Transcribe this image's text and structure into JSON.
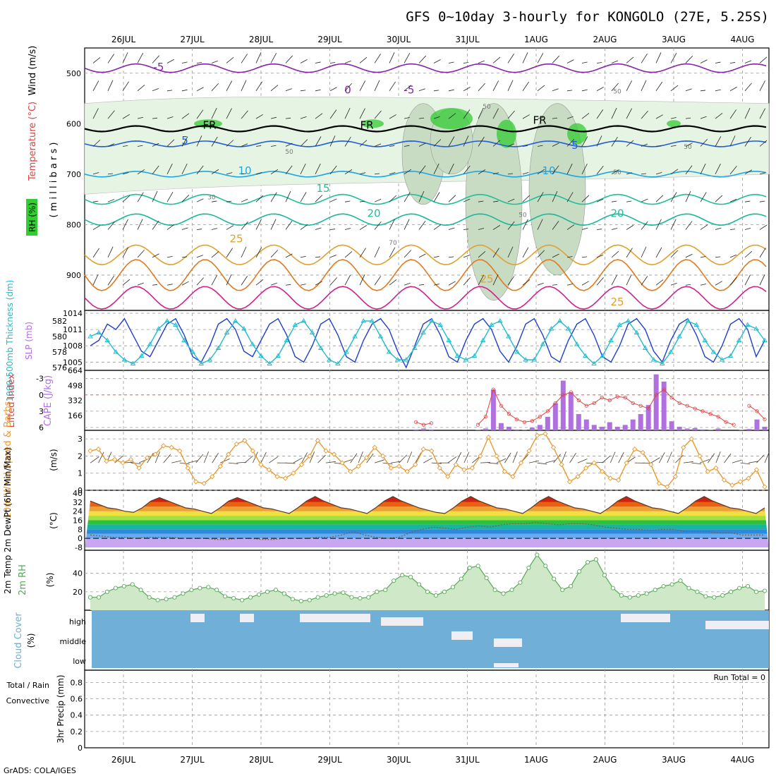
{
  "title": "GFS 0~10day 3-hourly for KONGOLO (27E, 5.25S)",
  "footer": "GrADS: COLA/IGES",
  "dates": [
    "26JUL",
    "27JUL",
    "28JUL",
    "29JUL",
    "30JUL",
    "31JUL",
    "1AUG",
    "2AUG",
    "3AUG",
    "4AUG"
  ],
  "colors": {
    "rh_green": "#33cc33",
    "temp_blue": "#1f5fd6",
    "temp_cyan": "#1fa5e0",
    "temp_teal": "#1fbf9a",
    "temp_orange": "#e0a030",
    "temp_red": "#d03030",
    "temp_magenta": "#d0208a",
    "freezing": "#000000",
    "slp": "#1f3fcc",
    "thickness": "#22bbcc",
    "lifted": "#e04040",
    "cape": "#b070e0",
    "wind10m": "#e89a30",
    "rh2m": "#55aa55",
    "cloud": "#6fafd8",
    "cloud_clear": "#f0eef5",
    "dewpt": "#8a5a3a"
  },
  "panels": {
    "upper": {
      "labels": {
        "rh": "RH (%)",
        "temp": "Temperature (°C)",
        "wind": "Wind (m/s)",
        "mb": "( m i l l i b a r s )"
      },
      "ticks": [
        "500",
        "600",
        "700",
        "800",
        "900"
      ],
      "contour_labels": [
        {
          "text": "-5",
          "color": "#8822aa"
        },
        {
          "text": "0",
          "color": "#8822aa"
        },
        {
          "text": "-5",
          "color": "#8822aa"
        },
        {
          "text": "5",
          "color": "#1f5fd6"
        },
        {
          "text": "5",
          "color": "#1f5fd6"
        },
        {
          "text": "10",
          "color": "#1fa5e0"
        },
        {
          "text": "10",
          "color": "#1fa5e0"
        },
        {
          "text": "15",
          "color": "#1fbf9a"
        },
        {
          "text": "20",
          "color": "#1fbf9a"
        },
        {
          "text": "20",
          "color": "#1fbf9a"
        },
        {
          "text": "25",
          "color": "#e0a030"
        },
        {
          "text": "25",
          "color": "#e0a030"
        },
        {
          "text": "25",
          "color": "#e0a030"
        },
        {
          "text": "FR",
          "color": "#000000"
        },
        {
          "text": "FR",
          "color": "#000000"
        },
        {
          "text": "FR",
          "color": "#000000"
        },
        {
          "text": "30",
          "color": "#777777"
        },
        {
          "text": "50",
          "color": "#777777"
        },
        {
          "text": "50",
          "color": "#777777"
        },
        {
          "text": "70",
          "color": "#777777"
        },
        {
          "text": "50",
          "color": "#777777"
        },
        {
          "text": "50",
          "color": "#777777"
        },
        {
          "text": "50",
          "color": "#777777"
        },
        {
          "text": "50",
          "color": "#777777"
        }
      ]
    },
    "slp": {
      "label_slp": "SLP (mb)",
      "label_thk": "1000-500mb Thickness (dm)",
      "left_ticks": [
        "582",
        "580",
        "578",
        "576"
      ],
      "right_ticks": [
        "1014",
        "1011",
        "1008",
        "1005"
      ]
    },
    "li": {
      "label_li": "Lifted Index",
      "label_cape": "CAPE (J/kg)",
      "left_ticks": [
        "-3",
        "0",
        "3",
        "6"
      ],
      "right_ticks": [
        "664",
        "498",
        "332",
        "166"
      ]
    },
    "wind10": {
      "label": "10m Wind Speed & Barbs",
      "unit": "(m/s)",
      "ticks": [
        "3",
        "2",
        "1",
        "0"
      ]
    },
    "temp2m": {
      "label": "2m Temp 2m DewPt (6hr Min/Max)",
      "unit": "(°C)",
      "ticks": [
        "40",
        "32",
        "24",
        "16",
        "8",
        "0",
        "-8"
      ]
    },
    "rh2m": {
      "label": "2m RH",
      "unit": "(%)",
      "ticks": [
        "40",
        "20"
      ]
    },
    "cloud": {
      "label": "Cloud Cover",
      "unit": "(%)",
      "levels": [
        "high",
        "middle",
        "low"
      ]
    },
    "precip": {
      "label_total": "Total / Rain",
      "label_conv": "Convective",
      "label_y": "3hr Precip (mm)",
      "ticks": [
        "0.8",
        "0.6",
        "0.4",
        "0.2",
        "0"
      ],
      "run_total": "Run Total = 0"
    }
  },
  "chart_data": [
    {
      "type": "heatmap",
      "name": "rh_temp_wind_section",
      "ylabel": "millibars",
      "ylim": [
        970,
        450
      ],
      "y_ticks": [
        500,
        600,
        700,
        800,
        900
      ],
      "x_dates": [
        "26JUL",
        "27JUL",
        "28JUL",
        "29JUL",
        "30JUL",
        "31JUL",
        "1AUG",
        "2AUG",
        "3AUG",
        "4AUG"
      ]
    },
    {
      "type": "line",
      "name": "slp_thickness",
      "series": [
        {
          "name": "SLP (mb)",
          "values": [
            1008,
            1009,
            1012,
            1011,
            1013,
            1010,
            1007,
            1006,
            1009,
            1012,
            1013,
            1010,
            1006,
            1005,
            1008,
            1012,
            1013,
            1011,
            1007,
            1006,
            1009,
            1012,
            1013,
            1010,
            1006,
            1005,
            1008,
            1012,
            1013,
            1010,
            1006,
            1005,
            1009,
            1012,
            1013,
            1011,
            1007,
            1004,
            1008,
            1012,
            1013,
            1010,
            1006,
            1005,
            1009,
            1012,
            1013,
            1011,
            1007,
            1005,
            1008,
            1012,
            1013,
            1010,
            1006,
            1005,
            1009,
            1012,
            1013,
            1010,
            1006,
            1005,
            1008,
            1012,
            1013,
            1011,
            1007,
            1005,
            1009,
            1012,
            1013,
            1010,
            1006,
            1005,
            1008,
            1012,
            1013,
            1011,
            1006,
            1009
          ]
        },
        {
          "name": "Thickness (dm)",
          "values": [
            580,
            580.5,
            579.5,
            578,
            577,
            576.5,
            577.5,
            579,
            581,
            582,
            581.5,
            579.5,
            578,
            576.5,
            577,
            578.5,
            580.5,
            582,
            581,
            579,
            577.5,
            576.5,
            577.5,
            579.5,
            581.5,
            582,
            580.5,
            578.5,
            577,
            576.5,
            578,
            580,
            582,
            582,
            580,
            578,
            577,
            577,
            578.5,
            580.5,
            582,
            581.5,
            579.5,
            577.5,
            577,
            577.5,
            579.5,
            581.5,
            582,
            580,
            578,
            577,
            577,
            579,
            581,
            582,
            581,
            579,
            577.5,
            576.5,
            577.5,
            579.5,
            581.5,
            582,
            580.5,
            578.5,
            577,
            576.5,
            578,
            580,
            582,
            581.5,
            579.5,
            578,
            577,
            577.5,
            579.5,
            581.5,
            581,
            579.5
          ]
        }
      ]
    },
    {
      "type": "bar",
      "name": "lifted_cape",
      "series": [
        {
          "name": "CAPE (J/kg)",
          "values": [
            0,
            0,
            0,
            0,
            0,
            0,
            0,
            0,
            0,
            0,
            0,
            0,
            0,
            0,
            0,
            0,
            0,
            0,
            0,
            0,
            0,
            0,
            0,
            0,
            0,
            0,
            0,
            0,
            0,
            0,
            0,
            0,
            0,
            0,
            0,
            0,
            0,
            0,
            0,
            0,
            0,
            0,
            10,
            20,
            10,
            0,
            0,
            0,
            0,
            0,
            5,
            20,
            450,
            80,
            40,
            10,
            5,
            30,
            60,
            150,
            300,
            550,
            420,
            180,
            120,
            60,
            40,
            90,
            40,
            60,
            120,
            180,
            280,
            620,
            540,
            100,
            40,
            20,
            25,
            10,
            5,
            20,
            0,
            0,
            5,
            15,
            120,
            40
          ]
        },
        {
          "name": "Lifted Index",
          "values": [
            null,
            null,
            null,
            null,
            null,
            null,
            null,
            null,
            null,
            null,
            null,
            null,
            null,
            null,
            null,
            null,
            null,
            null,
            null,
            null,
            null,
            null,
            null,
            null,
            null,
            null,
            null,
            null,
            null,
            null,
            null,
            null,
            null,
            null,
            null,
            null,
            null,
            null,
            null,
            null,
            null,
            null,
            5,
            5.5,
            5.2,
            null,
            null,
            null,
            null,
            null,
            5.5,
            4,
            -1,
            2,
            3.5,
            4.5,
            5,
            4.8,
            4,
            3,
            1.5,
            0,
            -0.5,
            1,
            2,
            1.5,
            0.5,
            1,
            0.3,
            0.5,
            1.5,
            2,
            2.5,
            0,
            -1,
            0.5,
            1.5,
            2,
            2.5,
            3,
            3.5,
            4,
            5,
            5.5,
            null,
            2,
            3,
            4.5
          ]
        }
      ]
    },
    {
      "type": "line",
      "name": "wind_10m",
      "ylabel": "(m/s)",
      "ylim": [
        0,
        3.5
      ],
      "values": [
        2.3,
        2.4,
        1.7,
        1.8,
        1.6,
        1.8,
        1.3,
        1.9,
        2.1,
        2.6,
        2.5,
        2.3,
        1.3,
        0.5,
        0.4,
        0.8,
        1.4,
        2.1,
        2.7,
        2.9,
        2.3,
        1.5,
        1.2,
        0.8,
        0.7,
        1,
        1.5,
        2,
        2.9,
        2.3,
        2.1,
        1.6,
        1.1,
        1.4,
        1.9,
        2.5,
        2.0,
        1.3,
        1.4,
        1.1,
        1.5,
        2.4,
        2.3,
        1.3,
        0.8,
        1.5,
        1.2,
        1.3,
        2.0,
        3.1,
        2.0,
        1.1,
        0.8,
        1.6,
        2.3,
        3.2,
        3.3,
        2.5,
        1.5,
        0.5,
        0.8,
        1.3,
        1.6,
        1.1,
        0.7,
        0.6,
        1.6,
        2.4,
        2.2,
        1.5,
        0.4,
        0.2,
        0.8,
        2.5,
        3.0,
        2.0,
        1.1,
        1.3,
        0.6,
        0.3,
        0.5,
        0.7,
        1.2,
        0.2
      ]
    },
    {
      "type": "area",
      "name": "temp_2m",
      "ylabel": "(°C)",
      "ylim": [
        -8,
        40
      ],
      "series": [
        {
          "name": "2m Temp",
          "values": [
            33,
            30,
            27,
            26,
            24,
            23,
            27,
            33,
            36,
            33,
            30,
            27,
            26,
            24,
            22,
            27,
            33,
            36,
            33,
            30,
            27,
            26,
            24,
            22,
            27,
            33,
            37,
            33,
            30,
            27,
            26,
            24,
            22,
            27,
            33,
            37,
            33,
            30,
            27,
            25,
            23,
            22,
            27,
            33,
            37,
            33,
            30,
            27,
            26,
            24,
            22,
            27,
            33,
            37,
            33,
            30,
            27,
            26,
            24,
            22,
            27,
            33,
            37,
            33,
            30,
            27,
            26,
            24,
            22,
            27,
            33,
            37,
            33,
            30,
            27,
            26,
            24,
            22,
            27
          ]
        },
        {
          "name": "2m DewPt",
          "values": [
            3,
            2,
            1,
            1,
            0,
            1,
            1,
            1,
            0,
            0,
            0,
            -1,
            -1,
            0,
            0,
            -1,
            -1,
            0,
            0,
            0,
            1,
            1,
            3,
            6,
            3,
            1,
            0,
            1,
            5,
            8,
            10,
            9,
            8,
            10,
            11,
            10,
            12,
            13,
            13,
            14,
            13,
            12,
            13,
            13,
            12,
            10,
            9,
            8,
            8,
            7,
            8,
            8,
            6,
            6,
            6,
            5,
            5,
            3,
            3,
            3
          ]
        }
      ]
    },
    {
      "type": "area",
      "name": "rh_2m",
      "ylabel": "(%)",
      "ylim": [
        0,
        65
      ],
      "values": [
        14,
        14,
        20,
        24,
        26,
        28,
        22,
        14,
        11,
        12,
        14,
        18,
        22,
        24,
        25,
        22,
        15,
        13,
        11,
        14,
        17,
        20,
        22,
        18,
        12,
        10,
        11,
        14,
        16,
        18,
        19,
        14,
        13,
        14,
        20,
        22,
        32,
        38,
        36,
        28,
        20,
        16,
        20,
        25,
        34,
        46,
        48,
        35,
        22,
        18,
        22,
        30,
        46,
        60,
        48,
        34,
        22,
        26,
        42,
        52,
        55,
        38,
        24,
        16,
        14,
        16,
        18,
        22,
        26,
        28,
        32,
        24,
        20,
        15,
        14,
        16,
        20,
        24,
        26,
        20,
        21
      ]
    },
    {
      "type": "bar",
      "name": "cloud_cover",
      "categories": [
        "high",
        "middle",
        "low"
      ]
    },
    {
      "type": "bar",
      "name": "precip_3hr",
      "ylabel": "3hr Precip (mm)",
      "ylim": [
        0,
        1
      ],
      "values": []
    }
  ]
}
